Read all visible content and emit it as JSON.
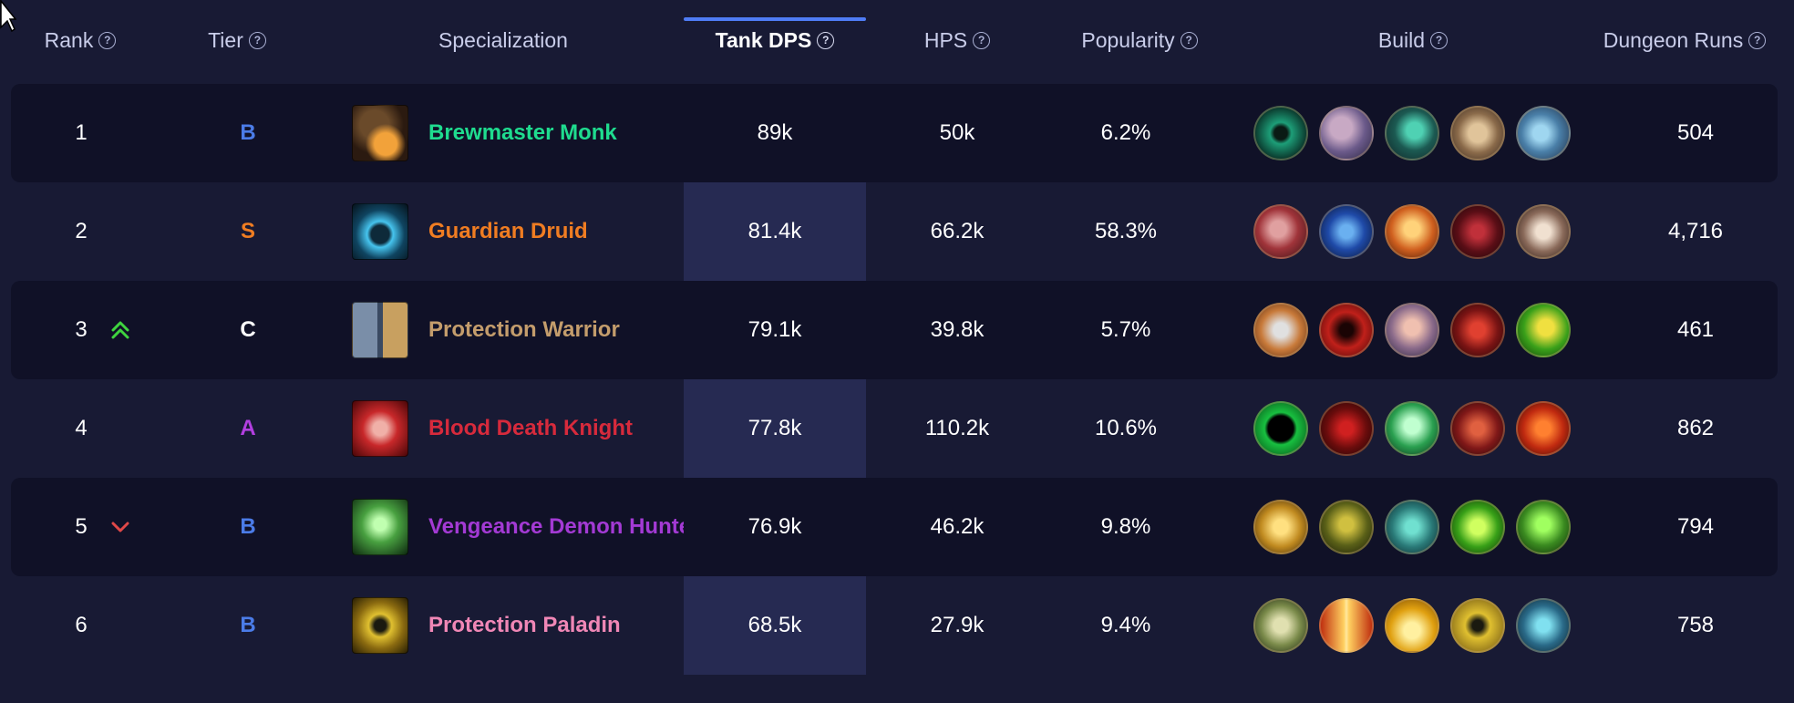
{
  "table": {
    "columns": [
      {
        "label": "Rank",
        "help": "?"
      },
      {
        "label": "Tier",
        "help": "?"
      },
      {
        "label": "Specialization"
      },
      {
        "label": "Tank DPS",
        "help": "?",
        "sorted": true
      },
      {
        "label": "HPS",
        "help": "?"
      },
      {
        "label": "Popularity",
        "help": "?"
      },
      {
        "label": "Build",
        "help": "?"
      },
      {
        "label": "Dungeon Runs",
        "help": "?"
      }
    ],
    "rows": [
      {
        "rank": "1",
        "trend": "",
        "tier": "B",
        "spec": "Brewmaster Monk",
        "dps": "89k",
        "hps": "50k",
        "popularity": "6.2%",
        "runs": "504"
      },
      {
        "rank": "2",
        "trend": "",
        "tier": "S",
        "spec": "Guardian Druid",
        "dps": "81.4k",
        "hps": "66.2k",
        "popularity": "58.3%",
        "runs": "4,716"
      },
      {
        "rank": "3",
        "trend": "up",
        "tier": "C",
        "spec": "Protection Warrior",
        "dps": "79.1k",
        "hps": "39.8k",
        "popularity": "5.7%",
        "runs": "461"
      },
      {
        "rank": "4",
        "trend": "",
        "tier": "A",
        "spec": "Blood Death Knight",
        "dps": "77.8k",
        "hps": "110.2k",
        "popularity": "10.6%",
        "runs": "862"
      },
      {
        "rank": "5",
        "trend": "down",
        "tier": "B",
        "spec": "Vengeance Demon Hunter",
        "dps": "76.9k",
        "hps": "46.2k",
        "popularity": "9.8%",
        "runs": "794"
      },
      {
        "rank": "6",
        "trend": "",
        "tier": "B",
        "spec": "Protection Paladin",
        "dps": "68.5k",
        "hps": "27.9k",
        "popularity": "9.4%",
        "runs": "758"
      }
    ]
  },
  "colors": {
    "tier_S": "#f07d22",
    "tier_A": "#b23fe0",
    "tier_B": "#4b7ce8",
    "tier_C": "#ffffff",
    "trend_up": "#3fd43f",
    "trend_down": "#e04848",
    "spec_monk": "#1fdc8f",
    "spec_druid": "#f07d22",
    "spec_warrior": "#c49d6c",
    "spec_dk": "#d72a3c",
    "spec_dh": "#a33ad4",
    "spec_paladin": "#f087b6",
    "sort_accent": "#4f7cf5"
  },
  "icons": {
    "trend_up": "double-chevron-up-icon",
    "trend_down": "chevron-down-icon",
    "help": "question-circle-icon"
  }
}
